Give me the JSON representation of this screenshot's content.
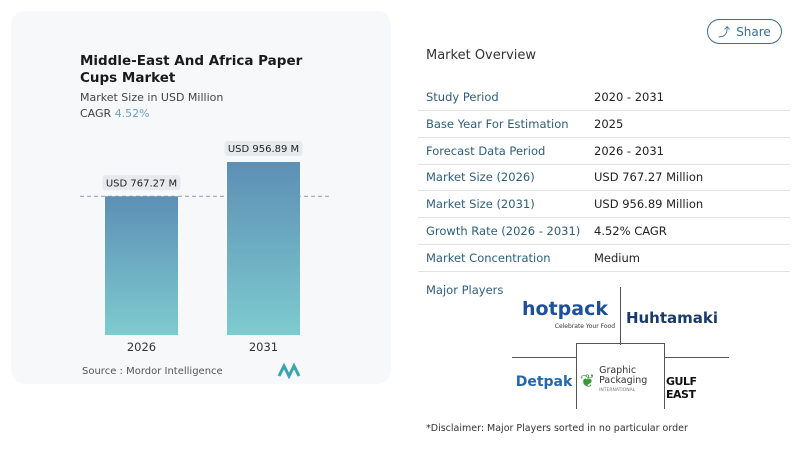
{
  "chart": {
    "title": "Middle-East And Africa Paper Cups Market",
    "subtitle": "Market Size in USD Million",
    "cagr_label": "CAGR",
    "cagr_value": "4.52%",
    "source": "Source :  Mordor Intelligence"
  },
  "chart_data": {
    "type": "bar",
    "categories": [
      "2026",
      "2031"
    ],
    "values": [
      767.27,
      956.89
    ],
    "data_labels": [
      "USD 767.27 M",
      "USD 956.89 M"
    ],
    "title": "Middle-East And Africa Paper Cups Market",
    "ylabel": "Market Size in USD Million",
    "ylim": [
      0,
      956.89
    ],
    "grid": false,
    "reference_line": 767.27,
    "colors": {
      "bar_top": "#5d8fb5",
      "bar_bottom": "#7ecbcf"
    }
  },
  "share": {
    "label": "Share",
    "icon": "share-icon"
  },
  "overview": {
    "title": "Market Overview",
    "rows": [
      {
        "label": "Study Period",
        "value": "2020 - 2031"
      },
      {
        "label": "Base Year For Estimation",
        "value": "2025"
      },
      {
        "label": "Forecast Data Period",
        "value": "2026 - 2031"
      },
      {
        "label": "Market Size (2026)",
        "value": "USD 767.27 Million"
      },
      {
        "label": "Market Size (2031)",
        "value": "USD 956.89 Million"
      },
      {
        "label": "Growth Rate (2026 - 2031)",
        "value": "4.52% CAGR"
      },
      {
        "label": "Market Concentration",
        "value": "Medium"
      }
    ]
  },
  "players": {
    "title": "Major Players",
    "logos": [
      "hotpack",
      "Celebrate Your Food",
      "Huhtamaki",
      "Detpak",
      "Graphic Packaging",
      "INTERNATIONAL",
      "GULF EAST"
    ]
  },
  "disclaimer": "*Disclaimer: Major Players sorted in no particular order"
}
